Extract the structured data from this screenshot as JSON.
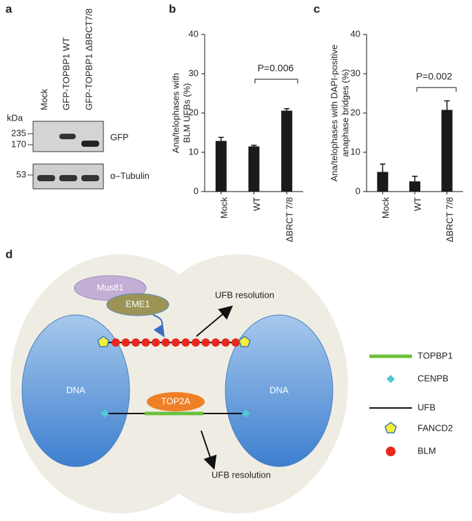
{
  "chart_data": [
    {
      "type": "bar",
      "panel": "b",
      "ylabel": [
        "Ana/telophases with",
        "BLM UFBs (%)"
      ],
      "categories": [
        "Mock",
        "WT",
        "ΔBRCT 7/8"
      ],
      "values": [
        12.9,
        11.5,
        20.6
      ],
      "errors": [
        0.9,
        0.3,
        0.5
      ],
      "color": "#1a1a1a",
      "ylim": [
        0,
        40
      ],
      "yticks": [
        0,
        10,
        20,
        30,
        40
      ],
      "annotation": "P=0.006"
    },
    {
      "type": "bar",
      "panel": "c",
      "ylabel": [
        "Ana/telophases with DAPI-positive",
        "anaphase bridges (%)"
      ],
      "categories": [
        "Mock",
        "WT",
        "ΔBRCT 7/8"
      ],
      "values": [
        5.0,
        2.6,
        20.8
      ],
      "errors": [
        2.0,
        1.3,
        2.3
      ],
      "color": "#1a1a1a",
      "ylim": [
        0,
        40
      ],
      "yticks": [
        0,
        10,
        20,
        30,
        40
      ],
      "annotation": "P=0.002"
    }
  ],
  "blot": {
    "panel": "a",
    "kda": "kDa",
    "markers": [
      235,
      170,
      53
    ],
    "lanes": [
      "Mock",
      "GFP-TOPBP1 WT",
      "GFP-TOPBP1 ΔBRCT7/8"
    ],
    "blots": [
      "GFP",
      "α–Tubulin"
    ]
  },
  "diagram": {
    "panel": "d",
    "mus81": "Mus81",
    "eme1": "EME1",
    "resolution": [
      "UFB resolution",
      "UFB resolution"
    ],
    "dna": [
      "DNA",
      "DNA"
    ],
    "top2a": "TOP2A",
    "legend": [
      "TOPBP1",
      "CENPB",
      "UFB",
      "FANCD2",
      "BLM"
    ]
  }
}
